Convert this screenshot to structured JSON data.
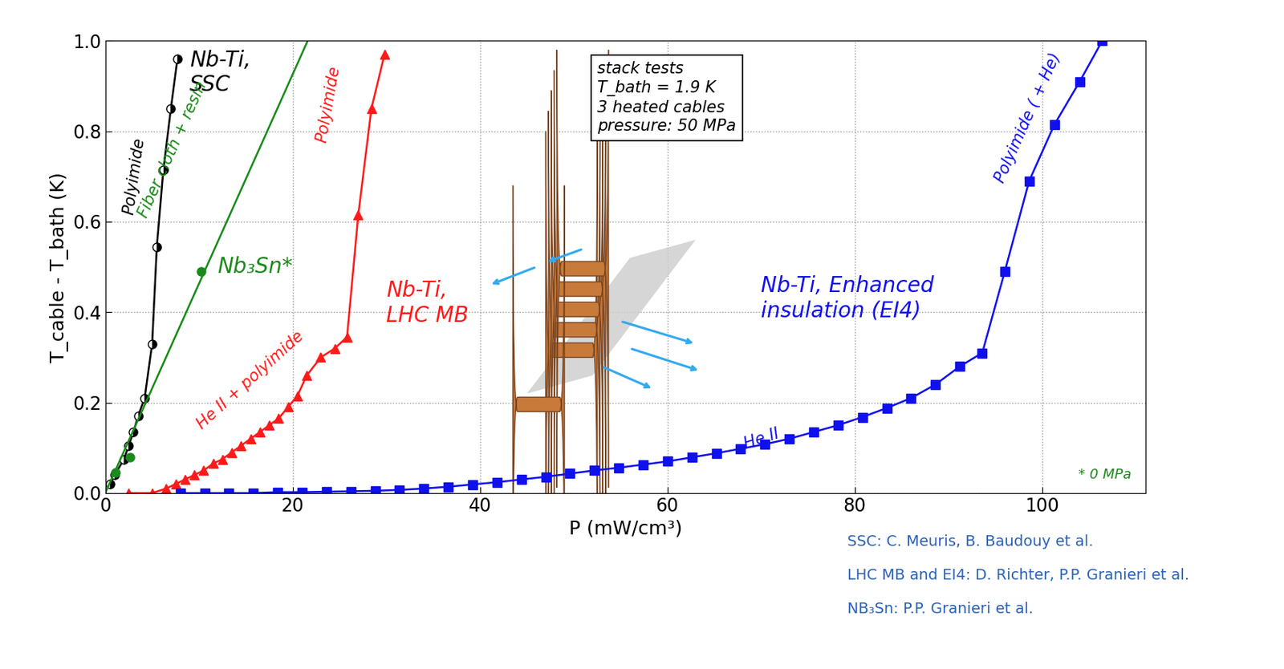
{
  "chart_data": {
    "type": "line",
    "xlabel": "P (mW/cm³)",
    "ylabel": "T_cable - T_bath (K)",
    "xlim": [
      0,
      111
    ],
    "ylim": [
      0,
      1.0
    ],
    "xticks": [
      0,
      20,
      40,
      60,
      80,
      100
    ],
    "yticks": [
      {
        "value": 0,
        "label": "0.0"
      },
      {
        "value": 0.2,
        "label": "0.2"
      },
      {
        "value": 0.4,
        "label": "0.4"
      },
      {
        "value": 0.6,
        "label": "0.6"
      },
      {
        "value": 0.8,
        "label": "0.8"
      },
      {
        "value": 1.0,
        "label": "1.0"
      }
    ],
    "grid": true,
    "series": [
      {
        "name": "Nb-Ti,\nSSC",
        "color": "#000000",
        "marker": "half-circle",
        "line_style": "solid",
        "x": [
          0.5,
          1.0,
          2.0,
          2.5,
          3.0,
          3.5,
          4.2,
          5.0,
          5.5,
          6.2,
          7.0,
          7.7
        ],
        "values": [
          0.02,
          0.04,
          0.075,
          0.105,
          0.135,
          0.17,
          0.21,
          0.33,
          0.545,
          0.715,
          0.85,
          0.96
        ]
      },
      {
        "name": "Nb₃Sn*",
        "color": "#1a8a1a",
        "marker": "circle",
        "line_style": "none",
        "x": [
          1.1,
          2.6,
          10.2
        ],
        "values": [
          0.045,
          0.08,
          0.49
        ]
      },
      {
        "color": "#1a8a1a",
        "marker": "none",
        "line_style": "solid",
        "x": [
          0,
          21.6
        ],
        "values": [
          0,
          1.0
        ]
      },
      {
        "name": "Nb-Ti,\nLHC MB",
        "color": "#ff1a1a",
        "marker": "triangle",
        "line_style": "solid",
        "x": [
          2.5,
          5.0,
          6.5,
          7.5,
          8.5,
          9.5,
          10.5,
          11.5,
          12.5,
          13.5,
          14.5,
          15.5,
          16.5,
          17.5,
          18.5,
          19.5,
          20.5,
          21.5,
          23.0,
          24.5,
          25.8,
          27.0,
          28.4,
          29.8
        ],
        "values": [
          0.0,
          0.0,
          0.01,
          0.02,
          0.03,
          0.04,
          0.05,
          0.065,
          0.075,
          0.09,
          0.105,
          0.12,
          0.135,
          0.15,
          0.165,
          0.19,
          0.215,
          0.26,
          0.3,
          0.32,
          0.345,
          0.615,
          0.85,
          0.97
        ]
      },
      {
        "name": "Nb-Ti, Enhanced\ninsulation (EI4)",
        "color": "#1010ee",
        "marker": "square",
        "line_style": "solid",
        "x": [
          8,
          10.6,
          13.2,
          15.8,
          18.4,
          21,
          23.6,
          26.2,
          28.8,
          31.4,
          34,
          36.6,
          39.2,
          41.8,
          44.4,
          47,
          49.6,
          52.2,
          54.8,
          57.4,
          60,
          62.6,
          65.2,
          67.8,
          70.4,
          73,
          75.6,
          78.2,
          80.8,
          83.4,
          86,
          88.6,
          91.2,
          93.6,
          96,
          98.6,
          101.3,
          104,
          106.4
        ],
        "values": [
          0,
          0,
          0,
          0,
          0.002,
          0.002,
          0.003,
          0.004,
          0.005,
          0.007,
          0.01,
          0.014,
          0.019,
          0.024,
          0.03,
          0.036,
          0.043,
          0.05,
          0.056,
          0.063,
          0.07,
          0.079,
          0.088,
          0.098,
          0.108,
          0.12,
          0.135,
          0.15,
          0.168,
          0.188,
          0.21,
          0.24,
          0.28,
          0.31,
          0.49,
          0.69,
          0.815,
          0.91,
          1.0
        ]
      }
    ],
    "annotations": [
      {
        "text": "Polyimide",
        "color": "#000000"
      },
      {
        "text": "Fiber cloth + resin",
        "color": "#1a8a1a"
      },
      {
        "text": "Polyimide",
        "color": "#ff1a1a"
      },
      {
        "text": "He II + polyimide",
        "color": "#ff1a1a"
      },
      {
        "text": "He II",
        "color": "#1010ee"
      },
      {
        "text": "Polyimide ( + He)",
        "color": "#1010ee"
      },
      {
        "text": "* 0 MPa",
        "color": "#1a8a1a"
      }
    ],
    "box_text": "stack tests\nT_bath = 1.9 K\n3 heated cables\npressure: 50 MPa",
    "credits": [
      "SSC: C. Meuris, B. Baudouy et al.",
      "LHC MB and EI4: D. Richter, P.P. Granieri et al.",
      "NB₃Sn: P.P. Granieri et al."
    ]
  }
}
